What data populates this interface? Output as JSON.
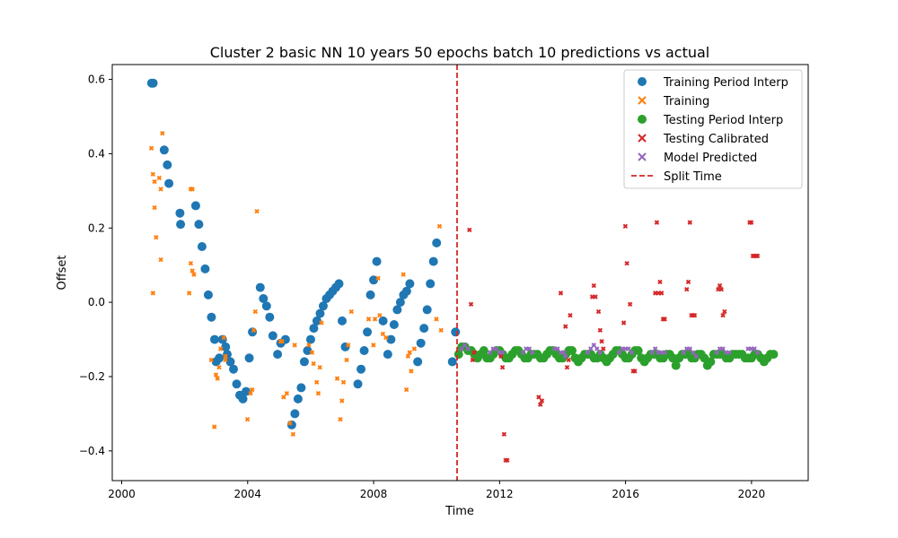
{
  "chart_data": {
    "type": "scatter",
    "title": "Cluster 2 basic NN 10 years 50 epochs batch 10 predictions vs actual",
    "xlabel": "Time",
    "ylabel": "Offset",
    "xlim": [
      1999.7,
      2021.8
    ],
    "ylim": [
      -0.48,
      0.64
    ],
    "x_ticks": [
      2000,
      2004,
      2008,
      2012,
      2016,
      2020
    ],
    "y_ticks": [
      -0.4,
      -0.2,
      0.0,
      0.2,
      0.4,
      0.6
    ],
    "x_tick_labels": [
      "2000",
      "2004",
      "2008",
      "2012",
      "2016",
      "2020"
    ],
    "y_tick_labels": [
      "−0.4",
      "−0.2",
      "0.0",
      "0.2",
      "0.4",
      "0.6"
    ],
    "grid": false,
    "legend_position": "top-right",
    "split_time": 2010.65,
    "series": [
      {
        "name": "Training Period Interp",
        "color": "#1f77b4",
        "marker": "circle",
        "x": [
          2000.95,
          2001.0,
          2001.35,
          2001.45,
          2001.5,
          2001.85,
          2001.87,
          2002.35,
          2002.45,
          2002.55,
          2002.65,
          2002.75,
          2002.85,
          2002.95,
          2003.0,
          2003.1,
          2003.2,
          2003.3,
          2003.35,
          2003.45,
          2003.55,
          2003.65,
          2003.75,
          2003.85,
          2003.95,
          2004.05,
          2004.15,
          2004.4,
          2004.5,
          2004.6,
          2004.7,
          2004.8,
          2004.95,
          2005.05,
          2005.2,
          2005.4,
          2005.5,
          2005.6,
          2005.7,
          2005.8,
          2005.9,
          2006.0,
          2006.1,
          2006.2,
          2006.3,
          2006.4,
          2006.5,
          2006.6,
          2006.7,
          2006.8,
          2006.9,
          2007.0,
          2007.1,
          2007.5,
          2007.6,
          2007.7,
          2007.8,
          2007.9,
          2008.0,
          2008.1,
          2008.3,
          2008.45,
          2008.55,
          2008.65,
          2008.75,
          2008.85,
          2008.95,
          2009.05,
          2009.15,
          2009.4,
          2009.5,
          2009.6,
          2009.7,
          2009.8,
          2009.9,
          2010.0,
          2010.5,
          2010.6
        ],
        "y": [
          0.59,
          0.59,
          0.41,
          0.37,
          0.32,
          0.24,
          0.21,
          0.26,
          0.21,
          0.15,
          0.09,
          0.02,
          -0.04,
          -0.1,
          -0.16,
          -0.15,
          -0.1,
          -0.12,
          -0.14,
          -0.16,
          -0.18,
          -0.22,
          -0.25,
          -0.26,
          -0.24,
          -0.15,
          -0.08,
          0.04,
          0.01,
          -0.01,
          -0.04,
          -0.09,
          -0.14,
          -0.11,
          -0.1,
          -0.33,
          -0.3,
          -0.26,
          -0.23,
          -0.16,
          -0.13,
          -0.1,
          -0.07,
          -0.05,
          -0.03,
          -0.01,
          0.01,
          0.02,
          0.03,
          0.04,
          0.05,
          -0.05,
          -0.12,
          -0.22,
          -0.18,
          -0.13,
          -0.08,
          0.02,
          0.06,
          0.11,
          -0.05,
          -0.14,
          -0.1,
          -0.06,
          -0.02,
          0.0,
          0.02,
          0.03,
          0.05,
          -0.16,
          -0.11,
          -0.07,
          -0.02,
          0.05,
          0.11,
          0.16,
          -0.16,
          -0.08
        ]
      },
      {
        "name": "Training",
        "color": "#ff7f0e",
        "marker": "x",
        "x": [
          2001.0,
          2001.05,
          2001.1,
          2001.15,
          2001.25,
          2001.3,
          2001.3,
          2001.35,
          2001.05,
          2001.1,
          2002.2,
          2002.25,
          2002.3,
          2002.35,
          2002.25,
          2002.3,
          2002.9,
          2003.0,
          2003.05,
          2003.1,
          2003.15,
          2003.2,
          2003.3,
          2003.35,
          2003.35,
          2004.05,
          2004.15,
          2004.2,
          2004.25,
          2004.3,
          2004.35,
          2005.1,
          2005.15,
          2005.2,
          2005.3,
          2005.4,
          2005.5,
          2005.55,
          2006.0,
          2006.1,
          2006.15,
          2006.25,
          2006.3,
          2006.35,
          2006.4,
          2006.9,
          2007.0,
          2007.05,
          2007.1,
          2007.2,
          2007.25,
          2007.35,
          2007.9,
          2008.05,
          2008.1,
          2008.2,
          2008.25,
          2008.35,
          2008.45,
          2009.0,
          2009.1,
          2009.15,
          2009.2,
          2009.25,
          2009.35,
          2010.05,
          2010.15,
          2010.2
        ],
        "y": [
          0.41,
          0.34,
          0.25,
          0.17,
          0.33,
          0.3,
          0.11,
          0.45,
          0.02,
          0.32,
          0.02,
          0.1,
          0.08,
          0.07,
          0.3,
          0.3,
          -0.16,
          -0.34,
          -0.2,
          -0.21,
          -0.18,
          -0.13,
          -0.1,
          -0.16,
          -0.15,
          -0.32,
          -0.25,
          -0.24,
          -0.08,
          -0.03,
          0.24,
          -0.11,
          -0.11,
          -0.26,
          -0.25,
          -0.33,
          -0.36,
          -0.12,
          -0.12,
          -0.14,
          -0.17,
          -0.22,
          -0.25,
          -0.18,
          -0.06,
          -0.21,
          -0.32,
          -0.27,
          -0.22,
          -0.16,
          -0.12,
          -0.03,
          -0.05,
          -0.12,
          -0.05,
          0.06,
          -0.04,
          -0.09,
          -0.1,
          0.07,
          -0.24,
          -0.15,
          -0.14,
          -0.19,
          -0.13,
          -0.05,
          0.2,
          -0.08
        ]
      },
      {
        "name": "Testing Period Interp",
        "color": "#2ca02c",
        "marker": "circle",
        "x": [
          2010.7,
          2010.8,
          2010.9,
          2011.0,
          2011.1,
          2011.2,
          2011.3,
          2011.4,
          2011.5,
          2011.6,
          2011.7,
          2011.8,
          2011.9,
          2012.0,
          2012.1,
          2012.2,
          2012.3,
          2012.4,
          2012.5,
          2012.6,
          2012.7,
          2012.8,
          2012.9,
          2013.0,
          2013.1,
          2013.2,
          2013.3,
          2013.4,
          2013.5,
          2013.6,
          2013.7,
          2013.8,
          2013.9,
          2014.0,
          2014.1,
          2014.2,
          2014.3,
          2014.4,
          2014.5,
          2014.6,
          2014.7,
          2014.8,
          2014.9,
          2015.0,
          2015.1,
          2015.2,
          2015.3,
          2015.4,
          2015.5,
          2015.6,
          2015.7,
          2015.8,
          2015.9,
          2016.0,
          2016.1,
          2016.2,
          2016.3,
          2016.4,
          2016.5,
          2016.6,
          2016.7,
          2016.8,
          2016.9,
          2017.0,
          2017.1,
          2017.2,
          2017.3,
          2017.4,
          2017.5,
          2017.6,
          2017.7,
          2017.8,
          2017.9,
          2018.0,
          2018.1,
          2018.2,
          2018.3,
          2018.4,
          2018.5,
          2018.6,
          2018.7,
          2018.8,
          2018.9,
          2019.0,
          2019.1,
          2019.2,
          2019.3,
          2019.4,
          2019.5,
          2019.6,
          2019.7,
          2019.8,
          2019.9,
          2020.0,
          2020.1,
          2020.2,
          2020.3,
          2020.4,
          2020.5,
          2020.6,
          2020.7
        ],
        "y": [
          -0.14,
          -0.12,
          -0.12,
          -0.13,
          -0.13,
          -0.14,
          -0.15,
          -0.14,
          -0.13,
          -0.15,
          -0.15,
          -0.14,
          -0.13,
          -0.13,
          -0.14,
          -0.15,
          -0.15,
          -0.14,
          -0.13,
          -0.13,
          -0.14,
          -0.15,
          -0.15,
          -0.14,
          -0.14,
          -0.14,
          -0.15,
          -0.15,
          -0.14,
          -0.13,
          -0.13,
          -0.14,
          -0.15,
          -0.15,
          -0.14,
          -0.13,
          -0.13,
          -0.15,
          -0.16,
          -0.15,
          -0.14,
          -0.14,
          -0.14,
          -0.15,
          -0.15,
          -0.14,
          -0.15,
          -0.16,
          -0.15,
          -0.14,
          -0.13,
          -0.13,
          -0.14,
          -0.15,
          -0.15,
          -0.14,
          -0.13,
          -0.13,
          -0.15,
          -0.16,
          -0.15,
          -0.14,
          -0.14,
          -0.14,
          -0.15,
          -0.15,
          -0.14,
          -0.14,
          -0.15,
          -0.17,
          -0.15,
          -0.14,
          -0.14,
          -0.14,
          -0.15,
          -0.15,
          -0.14,
          -0.14,
          -0.15,
          -0.17,
          -0.16,
          -0.14,
          -0.14,
          -0.14,
          -0.14,
          -0.15,
          -0.15,
          -0.14,
          -0.14,
          -0.14,
          -0.14,
          -0.15,
          -0.15,
          -0.15,
          -0.14,
          -0.14,
          -0.15,
          -0.16,
          -0.15,
          -0.14,
          -0.14
        ]
      },
      {
        "name": "Testing Calibrated",
        "color": "#d62728",
        "marker": "x",
        "x": [
          2011.1,
          2011.15,
          2011.2,
          2011.25,
          2012.1,
          2012.15,
          2012.2,
          2012.25,
          2012.3,
          2013.3,
          2013.35,
          2013.4,
          2014.0,
          2014.15,
          2014.2,
          2014.25,
          2014.3,
          2015.0,
          2015.05,
          2015.1,
          2015.2,
          2015.25,
          2015.3,
          2015.35,
          2016.0,
          2016.05,
          2016.1,
          2016.2,
          2016.3,
          2016.35,
          2017.0,
          2017.05,
          2017.1,
          2017.15,
          2017.2,
          2017.25,
          2017.3,
          2018.0,
          2018.05,
          2018.1,
          2018.15,
          2018.2,
          2018.25,
          2019.0,
          2019.05,
          2019.1,
          2019.15,
          2019.2,
          2020.0,
          2020.05,
          2020.1,
          2020.15,
          2020.2,
          2020.25
        ],
        "y": [
          0.19,
          -0.01,
          -0.16,
          -0.14,
          -0.15,
          -0.18,
          -0.36,
          -0.43,
          -0.43,
          -0.26,
          -0.28,
          -0.27,
          0.02,
          -0.07,
          -0.18,
          -0.16,
          -0.04,
          0.01,
          0.04,
          0.01,
          -0.03,
          -0.08,
          -0.11,
          -0.13,
          -0.06,
          0.2,
          0.1,
          -0.01,
          -0.19,
          -0.19,
          0.02,
          0.21,
          0.02,
          0.05,
          0.02,
          -0.05,
          -0.05,
          0.03,
          0.05,
          0.21,
          -0.04,
          -0.04,
          -0.04,
          0.03,
          0.04,
          0.03,
          -0.04,
          -0.03,
          0.21,
          0.21,
          0.12,
          0.12,
          0.12,
          0.12
        ]
      },
      {
        "name": "Model Predicted",
        "color": "#9467bd",
        "marker": "x",
        "x": [
          2010.85,
          2010.95,
          2011.05,
          2011.75,
          2011.85,
          2011.95,
          2012.05,
          2012.15,
          2012.8,
          2012.9,
          2013.0,
          2013.1,
          2013.8,
          2013.9,
          2014.0,
          2014.1,
          2014.15,
          2014.85,
          2014.95,
          2015.05,
          2015.15,
          2015.25,
          2015.85,
          2015.95,
          2016.05,
          2016.15,
          2016.25,
          2016.9,
          2017.0,
          2017.1,
          2017.2,
          2017.3,
          2017.9,
          2018.0,
          2018.1,
          2018.2,
          2018.3,
          2018.95,
          2019.05,
          2019.15,
          2019.25,
          2019.35,
          2019.95,
          2020.05,
          2020.15,
          2020.25
        ],
        "y": [
          -0.13,
          -0.12,
          -0.13,
          -0.14,
          -0.13,
          -0.13,
          -0.14,
          -0.14,
          -0.14,
          -0.13,
          -0.13,
          -0.14,
          -0.13,
          -0.13,
          -0.14,
          -0.14,
          -0.15,
          -0.14,
          -0.13,
          -0.12,
          -0.13,
          -0.14,
          -0.14,
          -0.13,
          -0.13,
          -0.13,
          -0.14,
          -0.14,
          -0.13,
          -0.14,
          -0.14,
          -0.14,
          -0.14,
          -0.13,
          -0.13,
          -0.14,
          -0.15,
          -0.14,
          -0.13,
          -0.13,
          -0.14,
          -0.14,
          -0.13,
          -0.13,
          -0.13,
          -0.14
        ]
      }
    ],
    "legend_entries": [
      {
        "label": "Training Period Interp",
        "color": "#1f77b4",
        "marker": "circle"
      },
      {
        "label": "Training",
        "color": "#ff7f0e",
        "marker": "x"
      },
      {
        "label": "Testing Period Interp",
        "color": "#2ca02c",
        "marker": "circle"
      },
      {
        "label": "Testing Calibrated",
        "color": "#d62728",
        "marker": "x"
      },
      {
        "label": "Model Predicted",
        "color": "#9467bd",
        "marker": "x"
      },
      {
        "label": "Split Time",
        "color": "#d62728",
        "marker": "dashed-line"
      }
    ]
  }
}
